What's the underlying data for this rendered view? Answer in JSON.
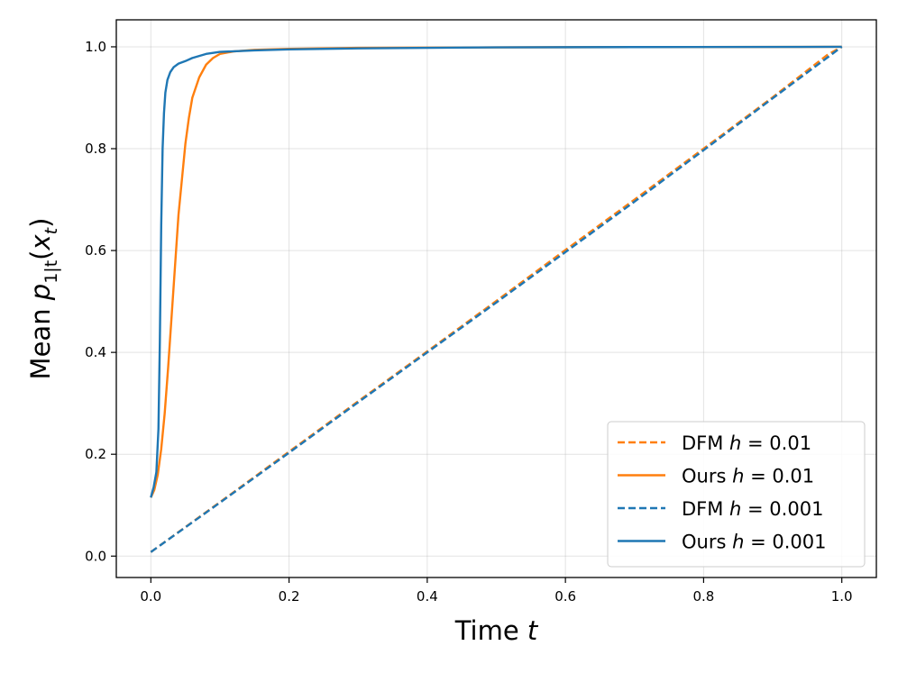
{
  "chart_data": {
    "type": "line",
    "xlabel": {
      "text": "Time ",
      "var": "t"
    },
    "ylabel": {
      "text": "Mean ",
      "var": "p",
      "sub": "1|t",
      "open": "(",
      "arg": "x",
      "argsub": "t",
      "close": ")"
    },
    "xlim": [
      -0.05,
      1.05
    ],
    "ylim": [
      -0.042,
      1.053
    ],
    "xticks": [
      0.0,
      0.2,
      0.4,
      0.6,
      0.8,
      1.0
    ],
    "xtick_labels": [
      "0.0",
      "0.2",
      "0.4",
      "0.6",
      "0.8",
      "1.0"
    ],
    "yticks": [
      0.0,
      0.2,
      0.4,
      0.6,
      0.8,
      1.0
    ],
    "ytick_labels": [
      "0.0",
      "0.2",
      "0.4",
      "0.6",
      "0.8",
      "1.0"
    ],
    "grid": true,
    "legend_position": "lower-right",
    "series": [
      {
        "name": {
          "prefix": "DFM ",
          "var": "h",
          "rest": " = 0.01"
        },
        "color": "#ff7f0e",
        "style": "dashed",
        "x": [
          0.0,
          0.1,
          0.2,
          0.3,
          0.4,
          0.5,
          0.6,
          0.7,
          0.8,
          0.9,
          0.98,
          1.0
        ],
        "y": [
          0.008,
          0.106,
          0.205,
          0.304,
          0.402,
          0.501,
          0.601,
          0.7,
          0.8,
          0.901,
          0.985,
          1.0
        ]
      },
      {
        "name": {
          "prefix": "Ours ",
          "var": "h",
          "rest": " = 0.01"
        },
        "color": "#ff7f0e",
        "style": "solid",
        "x": [
          0.0,
          0.005,
          0.01,
          0.015,
          0.02,
          0.025,
          0.03,
          0.035,
          0.04,
          0.045,
          0.05,
          0.055,
          0.06,
          0.07,
          0.08,
          0.09,
          0.1,
          0.12,
          0.15,
          0.2,
          0.3,
          0.5,
          0.7,
          1.0
        ],
        "y": [
          0.115,
          0.13,
          0.16,
          0.21,
          0.28,
          0.37,
          0.47,
          0.57,
          0.67,
          0.74,
          0.81,
          0.86,
          0.9,
          0.94,
          0.965,
          0.978,
          0.986,
          0.991,
          0.994,
          0.996,
          0.998,
          0.999,
          0.9995,
          1.0
        ]
      },
      {
        "name": {
          "prefix": "DFM ",
          "var": "h",
          "rest": " = 0.001"
        },
        "color": "#1f77b4",
        "style": "dashed",
        "x": [
          0.0,
          0.1,
          0.2,
          0.3,
          0.4,
          0.5,
          0.6,
          0.7,
          0.8,
          0.9,
          1.0
        ],
        "y": [
          0.008,
          0.105,
          0.203,
          0.302,
          0.4,
          0.498,
          0.597,
          0.696,
          0.797,
          0.899,
          1.0
        ]
      },
      {
        "name": {
          "prefix": "Ours ",
          "var": "h",
          "rest": " = 0.001"
        },
        "color": "#1f77b4",
        "style": "solid",
        "x": [
          0.0,
          0.004,
          0.008,
          0.011,
          0.013,
          0.015,
          0.017,
          0.019,
          0.021,
          0.024,
          0.028,
          0.033,
          0.04,
          0.05,
          0.06,
          0.08,
          0.1,
          0.15,
          0.2,
          0.3,
          0.5,
          0.7,
          1.0
        ],
        "y": [
          0.115,
          0.135,
          0.165,
          0.25,
          0.42,
          0.65,
          0.8,
          0.87,
          0.91,
          0.935,
          0.95,
          0.96,
          0.967,
          0.972,
          0.978,
          0.986,
          0.99,
          0.993,
          0.995,
          0.997,
          0.999,
          0.9995,
          1.0
        ]
      }
    ]
  }
}
